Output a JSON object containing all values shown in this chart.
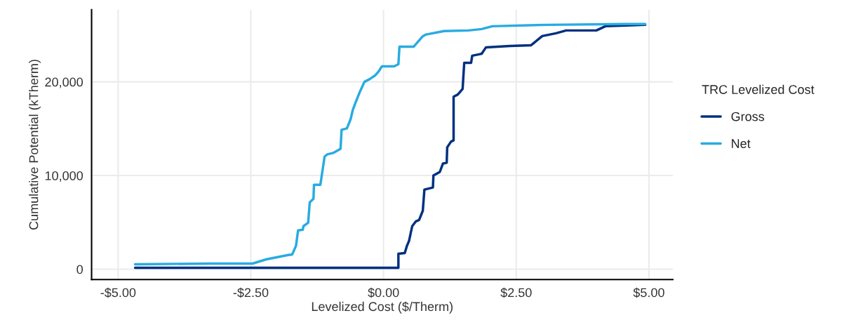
{
  "chart_data": {
    "type": "line",
    "xlabel": "Levelized Cost ($/Therm)",
    "ylabel": "Cumulative Potential (kTherm)",
    "legend_title": "TRC Levelized Cost",
    "legend": "right",
    "grid": true,
    "line_style": "solid",
    "marker": "none",
    "xlim": [
      -5.5,
      5.45
    ],
    "xticks": [
      {
        "value": -5,
        "label": "-$5.00"
      },
      {
        "value": -2.5,
        "label": "-$2.50"
      },
      {
        "value": 0,
        "label": "$0.00"
      },
      {
        "value": 2.5,
        "label": "$2.50"
      },
      {
        "value": 5,
        "label": "$5.00"
      }
    ],
    "ylim": [
      -1100,
      27700
    ],
    "yticks": [
      0,
      {
        "value": 10000,
        "label": "10,000"
      },
      {
        "value": 20000,
        "label": "20,000"
      }
    ],
    "series": [
      {
        "name": "Gross",
        "color": "#00307f",
        "x": [
          -4.68,
          0.17,
          0.28,
          0.28,
          0.4,
          0.44,
          0.48,
          0.54,
          0.61,
          0.67,
          0.74,
          0.77,
          0.93,
          0.94,
          1.06,
          1.12,
          1.19,
          1.2,
          1.27,
          1.32,
          1.32,
          1.4,
          1.49,
          1.52,
          1.65,
          1.67,
          1.8,
          1.85,
          1.93,
          2.38,
          2.78,
          2.99,
          3.25,
          3.44,
          4.01,
          4.18,
          4.58,
          4.93
        ],
        "values": [
          150,
          150,
          150,
          1650,
          1730,
          2480,
          3010,
          4590,
          5110,
          5260,
          6240,
          8500,
          8720,
          10000,
          10380,
          11280,
          11360,
          13010,
          13610,
          13760,
          18420,
          18650,
          19250,
          22030,
          22030,
          22790,
          22940,
          23010,
          23690,
          23840,
          23910,
          24890,
          25190,
          25490,
          25490,
          25940,
          26020,
          26090
        ]
      },
      {
        "name": "Net",
        "color": "#29abe2",
        "x": [
          -4.68,
          -3.27,
          -2.47,
          -2.21,
          -1.81,
          -1.72,
          -1.65,
          -1.61,
          -1.52,
          -1.51,
          -1.42,
          -1.39,
          -1.32,
          -1.31,
          -1.19,
          -1.11,
          -1.06,
          -0.95,
          -0.81,
          -0.79,
          -0.69,
          -0.62,
          -0.58,
          -0.53,
          -0.45,
          -0.36,
          -0.26,
          -0.16,
          -0.09,
          -0.03,
          0.2,
          0.28,
          0.3,
          0.57,
          0.73,
          0.79,
          1.14,
          1.6,
          1.85,
          2.05,
          3.08,
          4.54,
          4.93
        ],
        "values": [
          530,
          600,
          600,
          1050,
          1500,
          1580,
          2480,
          4140,
          4210,
          4590,
          4960,
          7140,
          7520,
          9020,
          9020,
          12030,
          12260,
          12410,
          12860,
          14890,
          15040,
          16020,
          16990,
          17750,
          18880,
          20000,
          20300,
          20680,
          21130,
          21660,
          21660,
          21880,
          23760,
          23760,
          24820,
          25040,
          25420,
          25490,
          25640,
          25940,
          26090,
          26170,
          26170
        ]
      }
    ]
  }
}
